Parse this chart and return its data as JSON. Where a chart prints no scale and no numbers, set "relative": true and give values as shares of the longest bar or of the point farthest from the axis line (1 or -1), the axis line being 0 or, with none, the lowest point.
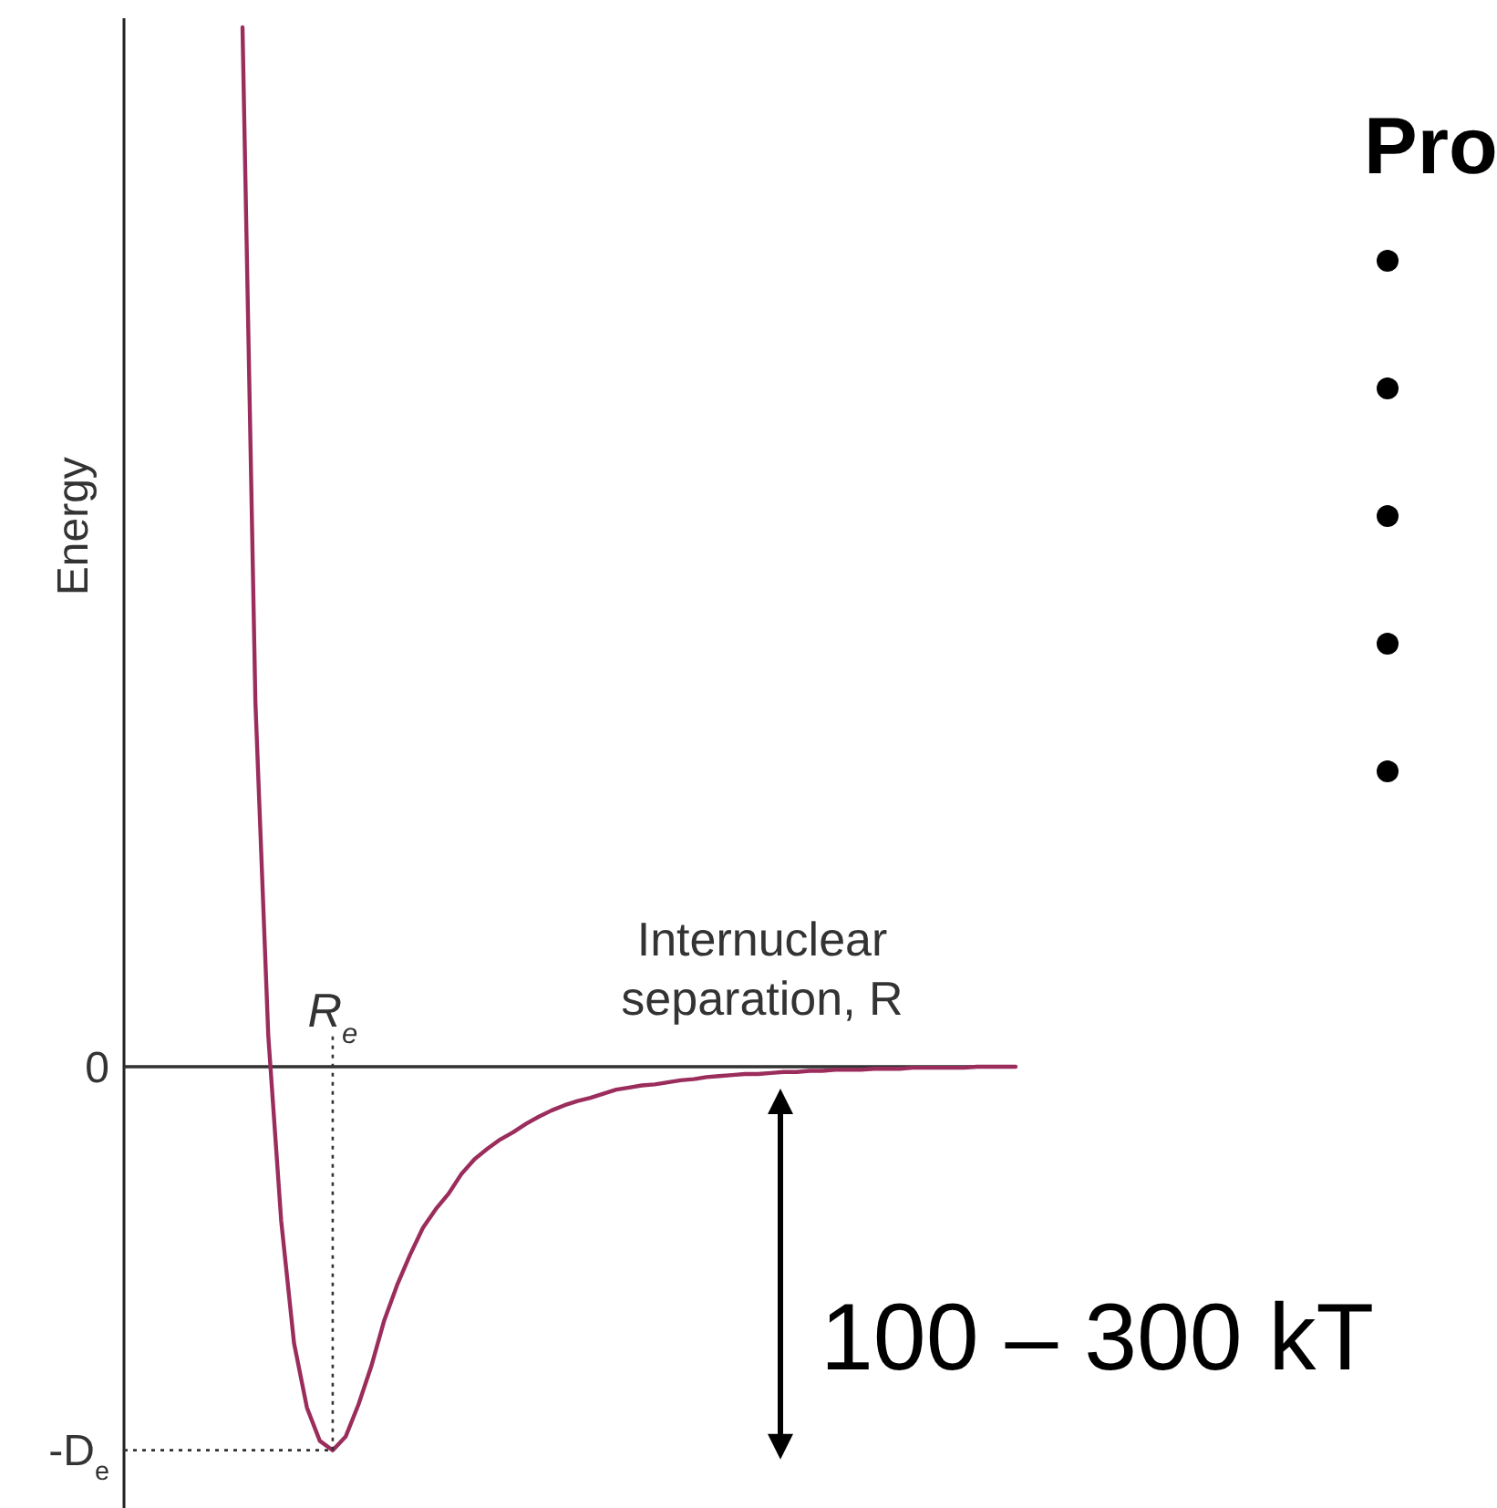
{
  "chart_data": {
    "type": "line",
    "xlabel": "Internuclear separation, R",
    "ylabel": "Energy",
    "relative": true,
    "categories": [
      null,
      null,
      null,
      null,
      null,
      null,
      null,
      null,
      null,
      null,
      null,
      null,
      null,
      null,
      null,
      null,
      null,
      null,
      null,
      null,
      null,
      null,
      null,
      null,
      null,
      null,
      null,
      null,
      null,
      null,
      null,
      null,
      null,
      null,
      null,
      null,
      null,
      null,
      null,
      null,
      null,
      null,
      null,
      null,
      null,
      null,
      null,
      null,
      null,
      null,
      null,
      null,
      null,
      null,
      null,
      null,
      null,
      null,
      null,
      null,
      null
    ],
    "series": [
      {
        "color": "#9b2d5c",
        "values": [
          1,
          0.351,
          0.03,
          -0.148,
          -0.266,
          -0.328,
          -0.36,
          -0.369,
          -0.356,
          -0.325,
          -0.288,
          -0.244,
          -0.21,
          -0.181,
          -0.155,
          -0.137,
          -0.122,
          -0.103,
          -0.089,
          -0.079,
          -0.07,
          -0.063,
          -0.055,
          -0.048,
          -0.042,
          -0.037,
          -0.033,
          -0.03,
          -0.026,
          -0.022,
          -0.02,
          -0.018,
          -0.017,
          -0.015,
          -0.013,
          -0.012,
          -0.01,
          -0.009,
          -0.008,
          -0.007,
          -0.007,
          -0.006,
          -0.005,
          -0.005,
          -0.004,
          -0.004,
          -0.003,
          -0.003,
          -0.003,
          -0.002,
          -0.002,
          -0.002,
          -0.001,
          -0.001,
          -0.001,
          -0.001,
          -0.001,
          0,
          0,
          0,
          0
        ]
      }
    ],
    "ref_lines": [
      {
        "axis": "y",
        "value": 0,
        "label": "0",
        "line_style": "solid"
      },
      {
        "axis": "y",
        "value": -0.369,
        "label": "-D$_{e}$",
        "line_style": "dotted"
      }
    ],
    "annotations": [
      {
        "text": "R$_{e}$",
        "y": -0.369
      },
      "100 – 300 kT",
      "Pro"
    ]
  }
}
